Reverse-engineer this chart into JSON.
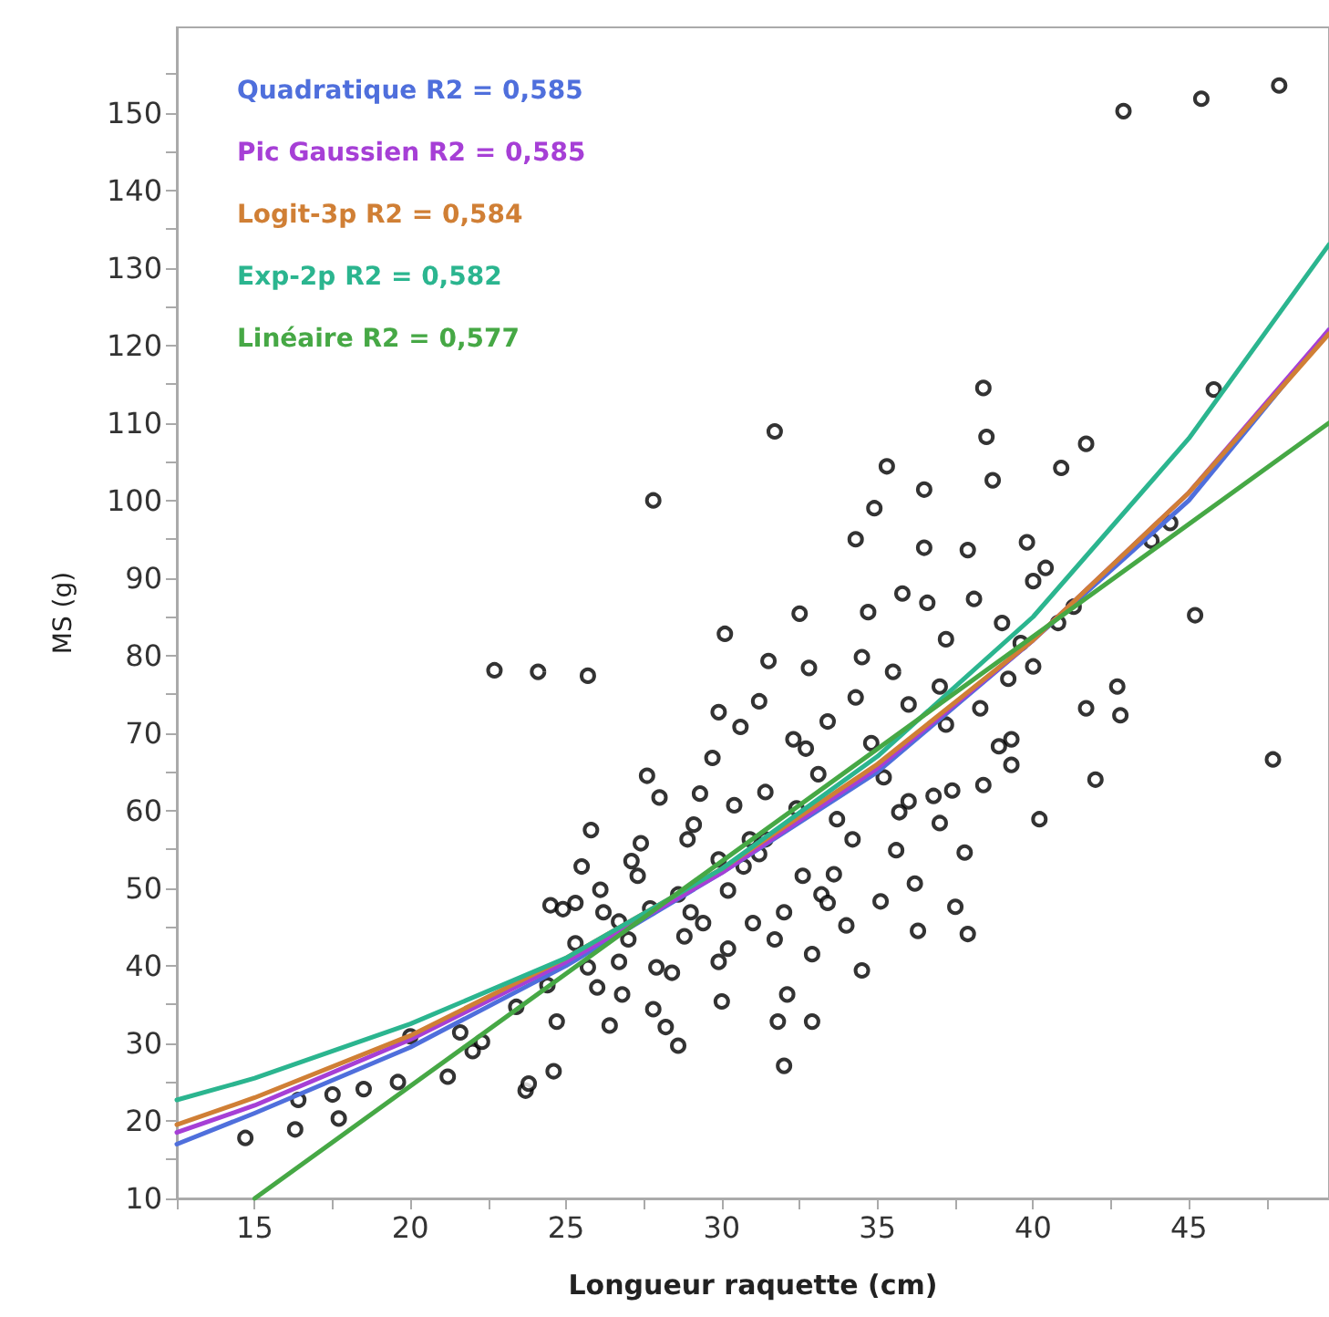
{
  "chart_data": {
    "type": "scatter",
    "xlabel": "Longueur raquette (cm)",
    "ylabel": "MS (g)",
    "xlim": [
      12.5,
      49.5
    ],
    "ylim": [
      10,
      161
    ],
    "xticks": [
      {
        "value": 12.5,
        "label": null
      },
      15,
      {
        "value": 17.5,
        "label": null
      },
      20,
      {
        "value": 22.5,
        "label": null
      },
      25,
      {
        "value": 27.5,
        "label": null
      },
      30,
      {
        "value": 32.5,
        "label": null
      },
      35,
      {
        "value": 37.5,
        "label": null
      },
      40,
      {
        "value": 42.5,
        "label": null
      },
      45,
      {
        "value": 47.5,
        "label": null
      }
    ],
    "yticks": [
      10,
      {
        "value": 15,
        "label": null
      },
      20,
      {
        "value": 25,
        "label": null
      },
      30,
      {
        "value": 35,
        "label": null
      },
      40,
      {
        "value": 45,
        "label": null
      },
      50,
      {
        "value": 55,
        "label": null
      },
      60,
      {
        "value": 65,
        "label": null
      },
      70,
      {
        "value": 75,
        "label": null
      },
      80,
      {
        "value": 85,
        "label": null
      },
      90,
      {
        "value": 95,
        "label": null
      },
      100,
      {
        "value": 105,
        "label": null
      },
      110,
      {
        "value": 115,
        "label": null
      },
      120,
      {
        "value": 125,
        "label": null
      },
      130,
      {
        "value": 135,
        "label": null
      },
      140,
      {
        "value": 145,
        "label": null
      },
      150,
      {
        "value": 155,
        "label": null
      }
    ],
    "grid": false,
    "legend": "top left",
    "marker": "circle",
    "series": [
      {
        "color": "#000000",
        "x": [
          14.7,
          16.3,
          16.4,
          17.7,
          17.5,
          18.5,
          19.6,
          20.0,
          21.2,
          21.6,
          22.0,
          22.3,
          22.7,
          23.4,
          23.7,
          23.8,
          24.1,
          24.4,
          24.6,
          24.5,
          24.9,
          25.7,
          25.7,
          25.3,
          25.3,
          25.5,
          25.8,
          26.1,
          26.2,
          26.0,
          26.4,
          26.8,
          26.7,
          27.0,
          27.1,
          27.4,
          27.6,
          27.7,
          27.8,
          27.8,
          28.2,
          28.0,
          28.4,
          28.6,
          28.6,
          28.8,
          28.9,
          29.1,
          29.3,
          29.4,
          29.7,
          29.9,
          29.9,
          30.0,
          30.1,
          30.2,
          30.2,
          30.4,
          30.6,
          30.7,
          30.9,
          31.0,
          31.2,
          31.2,
          31.4,
          31.5,
          31.7,
          31.7,
          31.8,
          32.0,
          32.1,
          32.3,
          32.4,
          32.5,
          32.6,
          32.7,
          32.9,
          33.1,
          33.2,
          33.4,
          33.6,
          33.7,
          34.0,
          34.2,
          34.3,
          34.3,
          34.5,
          34.7,
          34.5,
          34.8,
          34.9,
          35.1,
          35.2,
          35.3,
          35.5,
          35.6,
          35.7,
          35.8,
          36.0,
          36.2,
          36.3,
          36.5,
          36.6,
          36.5,
          36.8,
          37.0,
          37.0,
          37.2,
          37.4,
          37.5,
          37.8,
          37.9,
          37.9,
          38.1,
          38.3,
          38.4,
          38.5,
          38.7,
          38.9,
          39.0,
          39.2,
          39.3,
          39.6,
          39.8,
          40.0,
          40.2,
          40.0,
          40.4,
          40.8,
          40.9,
          41.3,
          41.7,
          41.7,
          42.0,
          42.7,
          42.8,
          42.9,
          43.8,
          44.4,
          45.2,
          45.4,
          45.8,
          47.9,
          47.7,
          27.9,
          29.0,
          29.9,
          32.8,
          33.4,
          31.4,
          32.0,
          36.0,
          37.2,
          38.4,
          39.3,
          32.9,
          26.7,
          24.7,
          27.3
        ],
        "values": [
          17.8,
          18.9,
          22.7,
          20.3,
          23.4,
          24.1,
          25.0,
          30.9,
          25.7,
          31.4,
          29.0,
          30.2,
          78.1,
          34.7,
          23.9,
          24.8,
          77.9,
          37.5,
          26.4,
          47.8,
          47.3,
          77.4,
          39.8,
          42.9,
          48.1,
          52.8,
          57.5,
          49.8,
          46.9,
          37.2,
          32.3,
          36.3,
          40.5,
          43.4,
          53.5,
          55.8,
          64.5,
          47.4,
          100.0,
          34.4,
          32.1,
          61.7,
          39.1,
          29.7,
          49.2,
          43.8,
          56.3,
          58.2,
          62.2,
          45.5,
          66.8,
          53.7,
          40.5,
          35.4,
          82.8,
          42.2,
          49.7,
          60.7,
          70.8,
          52.8,
          56.3,
          45.5,
          54.4,
          74.1,
          62.4,
          79.3,
          108.9,
          43.4,
          32.8,
          27.1,
          36.3,
          69.2,
          60.3,
          85.4,
          51.6,
          68.0,
          41.5,
          64.7,
          49.2,
          48.1,
          51.8,
          58.9,
          45.2,
          56.3,
          74.6,
          95.0,
          79.8,
          85.6,
          39.4,
          68.7,
          99.0,
          48.3,
          64.3,
          104.4,
          77.9,
          54.9,
          59.8,
          88.0,
          73.7,
          50.6,
          44.5,
          101.4,
          86.8,
          93.9,
          61.9,
          76.0,
          58.4,
          71.1,
          62.6,
          47.6,
          54.6,
          44.1,
          93.6,
          87.3,
          73.2,
          114.5,
          108.2,
          102.6,
          68.3,
          84.2,
          77.0,
          65.9,
          81.6,
          94.6,
          89.6,
          58.9,
          78.6,
          91.3,
          84.2,
          104.2,
          86.3,
          107.3,
          73.2,
          64.0,
          76.0,
          72.3,
          150.2,
          94.8,
          97.1,
          85.2,
          151.8,
          114.3,
          153.5,
          66.6,
          39.8,
          46.9,
          72.7,
          78.4,
          71.5,
          56.3,
          46.9,
          61.2,
          82.1,
          63.3,
          69.2,
          32.8,
          45.7,
          32.8,
          51.6
        ]
      },
      {
        "type": "line",
        "name": "Quadratique R2 = 0,585",
        "color": "#4f6fdc",
        "marker": "none",
        "x": [
          12.5,
          15,
          20,
          25,
          30,
          35,
          40,
          45,
          49.5
        ],
        "values": [
          17,
          21,
          29.5,
          40,
          52,
          65,
          82,
          100,
          122
        ]
      },
      {
        "type": "line",
        "name": "Pic Gaussien R2 = 0,585",
        "color": "#a63fd6",
        "marker": "none",
        "x": [
          12.5,
          15,
          20,
          25,
          30,
          35,
          40,
          45,
          49.5
        ],
        "values": [
          18.5,
          22,
          30.5,
          40.5,
          52,
          65.5,
          82,
          101,
          122
        ]
      },
      {
        "type": "line",
        "name": "Logit-3p R2 = 0,584",
        "color": "#d07f35",
        "marker": "none",
        "x": [
          12.5,
          15,
          20,
          25,
          30,
          35,
          40,
          45,
          49.5
        ],
        "values": [
          19.5,
          23,
          31,
          41,
          52.5,
          66,
          82,
          101,
          121.5
        ]
      },
      {
        "type": "line",
        "name": "Exp-2p R2 = 0,582",
        "color": "#2bb58f",
        "marker": "none",
        "x": [
          12.5,
          15,
          20,
          25,
          30,
          35,
          40,
          45,
          49.5
        ],
        "values": [
          22.7,
          25.5,
          32.5,
          41,
          52.5,
          67,
          85,
          108,
          133
        ]
      },
      {
        "type": "line",
        "name": "Linéaire R2 = 0,577",
        "color": "#46a845",
        "marker": "none",
        "x": [
          15,
          49.5
        ],
        "values": [
          10,
          110
        ]
      }
    ]
  }
}
